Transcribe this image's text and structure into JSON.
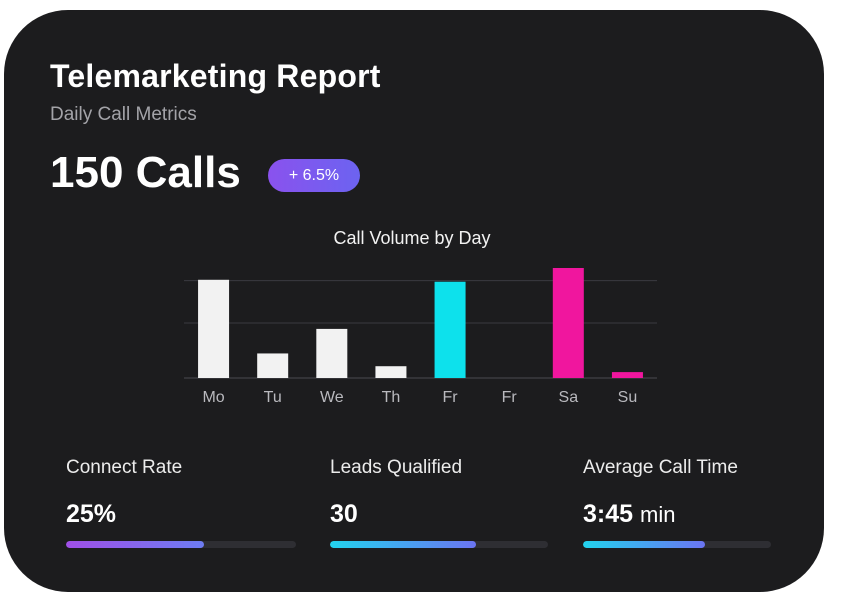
{
  "header": {
    "title": "Telemarketing Report",
    "subtitle": "Daily Call Metrics"
  },
  "summary": {
    "total": "150 Calls",
    "change_badge": "+ 6.5%"
  },
  "chart_data": {
    "type": "bar",
    "title": "Call Volume by Day",
    "categories": [
      "Mo",
      "Tu",
      "We",
      "Th",
      "Fr",
      "Fr",
      "Sa",
      "Su"
    ],
    "values": [
      100,
      25,
      50,
      12,
      98,
      0,
      112,
      6
    ],
    "ylim": [
      0,
      112
    ],
    "grid": true,
    "highlight_colors": {
      "4": "#0de1ec",
      "6": "#f0169e",
      "7": "#f0169e"
    },
    "default_bar_color": "#f2f2f2"
  },
  "metrics": [
    {
      "label": "Connect Rate",
      "value": "25%",
      "unit": "",
      "progress": 0.6,
      "gradient": [
        "#a04fe8",
        "#6d7cf2"
      ]
    },
    {
      "label": "Leads Qualified",
      "value": "30",
      "unit": "",
      "progress": 0.67,
      "gradient": [
        "#22d3ee",
        "#6b74f2"
      ]
    },
    {
      "label": "Average Call Time",
      "value": "3:45",
      "unit": "min",
      "progress": 0.65,
      "gradient": [
        "#22d3ee",
        "#6b74f2"
      ]
    }
  ],
  "colors": {
    "card_background": "#1c1c1e",
    "accent_cyan": "#0de1ec",
    "accent_magenta": "#f0169e",
    "badge_purple": "#8a52ee"
  }
}
